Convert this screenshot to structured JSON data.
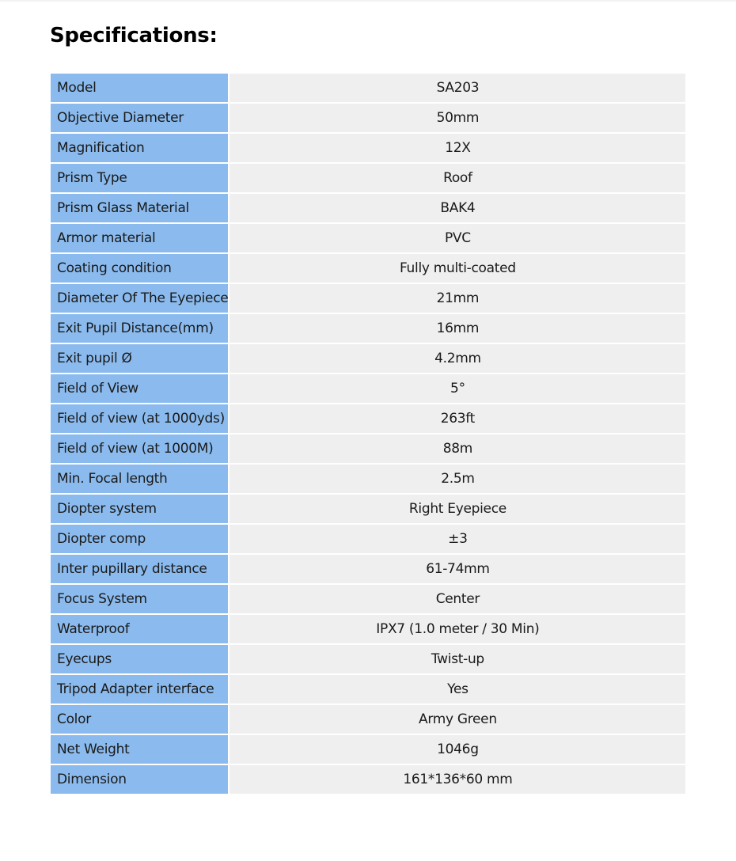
{
  "title": "Specifications:",
  "colors": {
    "label_bg": "#8bbbee",
    "value_bg": "#efefef"
  },
  "specs": [
    {
      "label": "Model",
      "value": "SA203"
    },
    {
      "label": "Objective Diameter",
      "value": "50mm"
    },
    {
      "label": "Magnification",
      "value": "12X"
    },
    {
      "label": "Prism Type",
      "value": "Roof"
    },
    {
      "label": "Prism Glass Material",
      "value": "BAK4"
    },
    {
      "label": "Armor material",
      "value": "PVC"
    },
    {
      "label": "Coating condition",
      "value": "Fully multi-coated"
    },
    {
      "label": "Diameter Of The Eyepiece",
      "value": "21mm"
    },
    {
      "label": "Exit Pupil Distance(mm)",
      "value": "16mm"
    },
    {
      "label": "Exit pupil Ø",
      "value": "4.2mm"
    },
    {
      "label": "Field of View",
      "value": "5°"
    },
    {
      "label": "Field of view (at 1000yds)",
      "value": "263ft"
    },
    {
      "label": "Field of view (at 1000M)",
      "value": "88m"
    },
    {
      "label": "Min. Focal length",
      "value": "2.5m"
    },
    {
      "label": "Diopter system",
      "value": "Right Eyepiece"
    },
    {
      "label": "Diopter comp",
      "value": "±3"
    },
    {
      "label": "Inter pupillary distance",
      "value": "61-74mm"
    },
    {
      "label": "Focus System",
      "value": "Center"
    },
    {
      "label": "Waterproof",
      "value": "IPX7 (1.0 meter / 30 Min)"
    },
    {
      "label": "Eyecups",
      "value": "Twist-up"
    },
    {
      "label": "Tripod Adapter interface",
      "value": "Yes"
    },
    {
      "label": "Color",
      "value": "Army Green"
    },
    {
      "label": "Net Weight",
      "value": "1046g"
    },
    {
      "label": "Dimension",
      "value": "161*136*60 mm"
    }
  ]
}
